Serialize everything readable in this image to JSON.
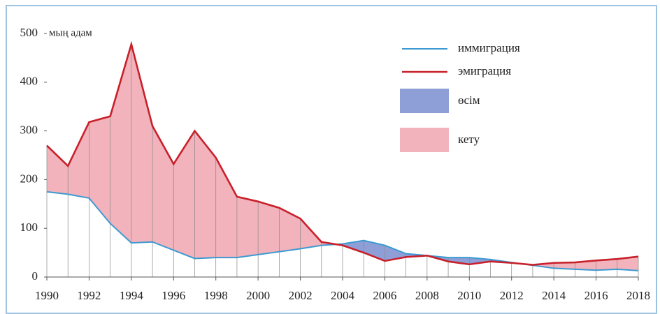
{
  "chart_data": {
    "type": "line",
    "y_label": "мың адам",
    "x": [
      1990,
      1991,
      1992,
      1993,
      1994,
      1995,
      1996,
      1997,
      1998,
      1999,
      2000,
      2001,
      2002,
      2003,
      2004,
      2005,
      2006,
      2007,
      2008,
      2009,
      2010,
      2011,
      2012,
      2013,
      2014,
      2015,
      2016,
      2017,
      2018
    ],
    "series": [
      {
        "name": "иммиграция",
        "color": "#3d9ad1",
        "values": [
          175,
          170,
          162,
          110,
          70,
          72,
          55,
          38,
          40,
          40,
          46,
          52,
          58,
          65,
          68,
          75,
          65,
          48,
          44,
          40,
          40,
          36,
          30,
          24,
          18,
          16,
          14,
          16,
          13
        ]
      },
      {
        "name": "эмиграция",
        "color": "#c8202a",
        "values": [
          270,
          228,
          318,
          330,
          478,
          310,
          232,
          300,
          245,
          165,
          155,
          142,
          120,
          72,
          65,
          50,
          33,
          41,
          44,
          32,
          26,
          32,
          29,
          25,
          29,
          30,
          34,
          37,
          42
        ]
      }
    ],
    "fills": [
      {
        "name": "өсім",
        "color": "#8d9fd6"
      },
      {
        "name": "кету",
        "color": "#f2b3bc"
      }
    ],
    "xlim": [
      1990,
      2018
    ],
    "xticks": [
      1990,
      1992,
      1994,
      1996,
      1998,
      2000,
      2002,
      2004,
      2006,
      2008,
      2010,
      2012,
      2014,
      2016,
      2018
    ],
    "ylim": [
      0,
      500
    ],
    "yticks": [
      0,
      100,
      200,
      300,
      400,
      500
    ]
  }
}
